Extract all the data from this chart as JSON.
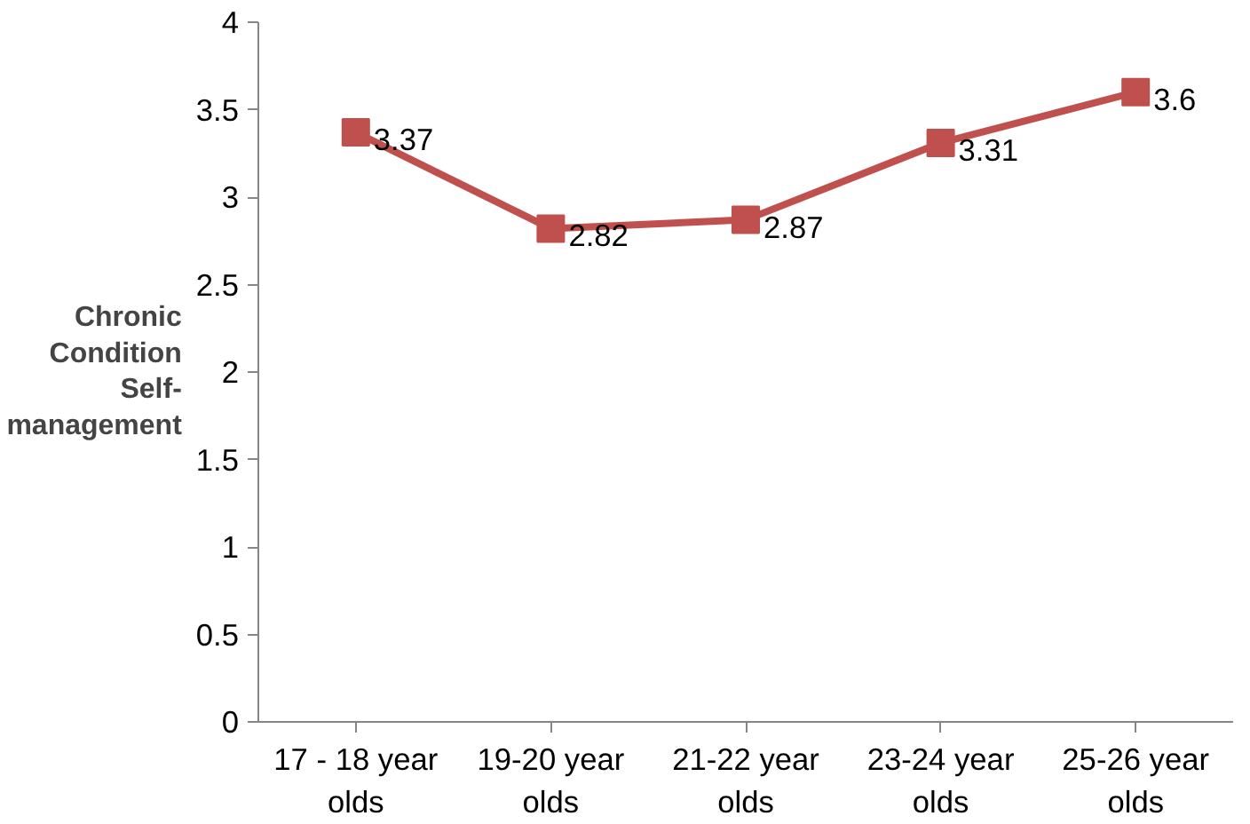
{
  "chart_data": {
    "type": "line",
    "ylabel": "Chronic Condition Self-management",
    "categories": [
      "17 - 18 year olds",
      "19-20 year olds",
      "21-22 year olds",
      "23-24 year olds",
      "25-26 year olds"
    ],
    "series": [
      {
        "color": "#c0504d",
        "values": [
          3.37,
          2.82,
          2.87,
          3.31,
          3.6
        ]
      }
    ],
    "ylim": [
      0,
      4
    ],
    "yticks": [
      0,
      0.5,
      1,
      1.5,
      2,
      2.5,
      3,
      3.5,
      4
    ],
    "marker": "square",
    "data_labels": true
  }
}
